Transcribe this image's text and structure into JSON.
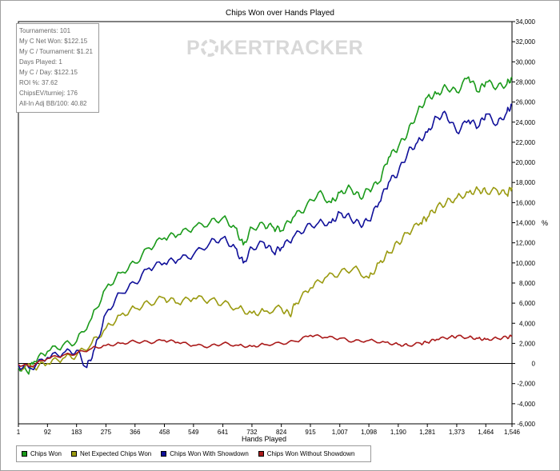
{
  "chart_data": {
    "type": "line",
    "title": "Chips Won over Hands Played",
    "xlabel": "Hands Played",
    "ylabel": "%",
    "xlim": [
      1,
      1546
    ],
    "ylim": [
      -6000,
      34000
    ],
    "x_ticks": [
      1,
      92,
      183,
      275,
      366,
      458,
      549,
      641,
      732,
      824,
      915,
      1007,
      1098,
      1190,
      1281,
      1373,
      1464,
      1546
    ],
    "x_tick_labels": [
      "1",
      "92",
      "183",
      "275",
      "366",
      "458",
      "549",
      "641",
      "732",
      "824",
      "915",
      "1,007",
      "1,098",
      "1,190",
      "1,281",
      "1,373",
      "1,464",
      "1,546"
    ],
    "y_ticks": [
      -6000,
      -4000,
      -2000,
      0,
      2000,
      4000,
      6000,
      8000,
      10000,
      12000,
      14000,
      16000,
      18000,
      20000,
      22000,
      24000,
      26000,
      28000,
      30000,
      32000,
      34000
    ],
    "y_tick_labels": [
      "-6,000",
      "-4,000",
      "-2,000",
      "0",
      "2,000",
      "4,000",
      "6,000",
      "8,000",
      "10,000",
      "12,000",
      "14,000",
      "16,000",
      "18,000",
      "20,000",
      "22,000",
      "24,000",
      "26,000",
      "28,000",
      "30,000",
      "32,000",
      "34,000"
    ],
    "grid": false,
    "legend_position": "bottom-left",
    "series": [
      {
        "name": "Chips Won",
        "color": "#1a9a1a",
        "points": [
          [
            1,
            -300
          ],
          [
            30,
            -900
          ],
          [
            50,
            200
          ],
          [
            92,
            1200
          ],
          [
            140,
            1800
          ],
          [
            183,
            2200
          ],
          [
            230,
            4500
          ],
          [
            275,
            7500
          ],
          [
            320,
            9000
          ],
          [
            366,
            10000
          ],
          [
            410,
            11500
          ],
          [
            458,
            12500
          ],
          [
            500,
            12800
          ],
          [
            549,
            13500
          ],
          [
            600,
            14000
          ],
          [
            641,
            14500
          ],
          [
            680,
            13500
          ],
          [
            705,
            11800
          ],
          [
            732,
            13500
          ],
          [
            770,
            13800
          ],
          [
            800,
            13500
          ],
          [
            824,
            13200
          ],
          [
            860,
            14500
          ],
          [
            900,
            15500
          ],
          [
            940,
            17000
          ],
          [
            980,
            16000
          ],
          [
            1007,
            17000
          ],
          [
            1040,
            17500
          ],
          [
            1070,
            16500
          ],
          [
            1098,
            17300
          ],
          [
            1130,
            18000
          ],
          [
            1160,
            20500
          ],
          [
            1190,
            21500
          ],
          [
            1220,
            23000
          ],
          [
            1250,
            25000
          ],
          [
            1281,
            26500
          ],
          [
            1310,
            26800
          ],
          [
            1340,
            27500
          ],
          [
            1373,
            27000
          ],
          [
            1410,
            28500
          ],
          [
            1440,
            27000
          ],
          [
            1464,
            28000
          ],
          [
            1500,
            27500
          ],
          [
            1530,
            27800
          ],
          [
            1546,
            28500
          ]
        ]
      },
      {
        "name": "Net Expected Chips Won",
        "color": "#9a9a10",
        "points": [
          [
            1,
            -300
          ],
          [
            50,
            -400
          ],
          [
            92,
            0
          ],
          [
            140,
            500
          ],
          [
            183,
            800
          ],
          [
            230,
            2000
          ],
          [
            275,
            3500
          ],
          [
            320,
            4800
          ],
          [
            366,
            5500
          ],
          [
            410,
            6000
          ],
          [
            458,
            6500
          ],
          [
            500,
            6000
          ],
          [
            549,
            6500
          ],
          [
            600,
            6300
          ],
          [
            641,
            6000
          ],
          [
            690,
            5500
          ],
          [
            732,
            5000
          ],
          [
            770,
            5200
          ],
          [
            824,
            5500
          ],
          [
            850,
            4800
          ],
          [
            870,
            6000
          ],
          [
            915,
            7500
          ],
          [
            960,
            8500
          ],
          [
            1007,
            9000
          ],
          [
            1050,
            9500
          ],
          [
            1098,
            8500
          ],
          [
            1130,
            10000
          ],
          [
            1160,
            11000
          ],
          [
            1190,
            12000
          ],
          [
            1220,
            13000
          ],
          [
            1260,
            14000
          ],
          [
            1281,
            14500
          ],
          [
            1310,
            15500
          ],
          [
            1340,
            16000
          ],
          [
            1373,
            16500
          ],
          [
            1410,
            17000
          ],
          [
            1440,
            17300
          ],
          [
            1464,
            17100
          ],
          [
            1500,
            17200
          ],
          [
            1530,
            16800
          ],
          [
            1546,
            17500
          ]
        ]
      },
      {
        "name": "Chips Won With Showdown",
        "color": "#10109a",
        "points": [
          [
            1,
            -200
          ],
          [
            40,
            -500
          ],
          [
            92,
            600
          ],
          [
            140,
            1000
          ],
          [
            183,
            1300
          ],
          [
            215,
            -400
          ],
          [
            240,
            1500
          ],
          [
            275,
            5000
          ],
          [
            320,
            7000
          ],
          [
            366,
            8000
          ],
          [
            410,
            9500
          ],
          [
            458,
            10000
          ],
          [
            500,
            10300
          ],
          [
            549,
            10800
          ],
          [
            600,
            12000
          ],
          [
            641,
            12500
          ],
          [
            680,
            11500
          ],
          [
            705,
            10000
          ],
          [
            732,
            11500
          ],
          [
            770,
            12000
          ],
          [
            800,
            11000
          ],
          [
            824,
            11500
          ],
          [
            860,
            12500
          ],
          [
            900,
            13500
          ],
          [
            940,
            14000
          ],
          [
            980,
            14000
          ],
          [
            1007,
            15000
          ],
          [
            1040,
            14500
          ],
          [
            1070,
            13800
          ],
          [
            1098,
            14200
          ],
          [
            1130,
            16000
          ],
          [
            1160,
            18000
          ],
          [
            1190,
            19000
          ],
          [
            1220,
            21000
          ],
          [
            1250,
            22000
          ],
          [
            1281,
            23000
          ],
          [
            1310,
            24500
          ],
          [
            1340,
            24800
          ],
          [
            1373,
            23000
          ],
          [
            1410,
            24200
          ],
          [
            1440,
            23500
          ],
          [
            1464,
            24800
          ],
          [
            1500,
            23800
          ],
          [
            1530,
            25000
          ],
          [
            1546,
            25800
          ]
        ]
      },
      {
        "name": "Chips Won Without Showdown",
        "color": "#aa1a1a",
        "points": [
          [
            1,
            -100
          ],
          [
            40,
            -300
          ],
          [
            92,
            500
          ],
          [
            140,
            800
          ],
          [
            183,
            1000
          ],
          [
            230,
            1500
          ],
          [
            275,
            1800
          ],
          [
            320,
            2000
          ],
          [
            366,
            2200
          ],
          [
            410,
            2100
          ],
          [
            458,
            2300
          ],
          [
            500,
            2100
          ],
          [
            549,
            1800
          ],
          [
            600,
            1700
          ],
          [
            641,
            2000
          ],
          [
            690,
            1800
          ],
          [
            732,
            1700
          ],
          [
            770,
            1900
          ],
          [
            824,
            2000
          ],
          [
            870,
            2200
          ],
          [
            915,
            2800
          ],
          [
            960,
            2600
          ],
          [
            1007,
            2500
          ],
          [
            1050,
            2200
          ],
          [
            1098,
            2300
          ],
          [
            1150,
            2100
          ],
          [
            1190,
            1900
          ],
          [
            1220,
            1800
          ],
          [
            1260,
            2000
          ],
          [
            1281,
            2100
          ],
          [
            1310,
            2400
          ],
          [
            1350,
            2600
          ],
          [
            1373,
            2700
          ],
          [
            1410,
            2600
          ],
          [
            1440,
            2500
          ],
          [
            1464,
            2400
          ],
          [
            1500,
            2500
          ],
          [
            1530,
            2600
          ],
          [
            1546,
            2700
          ]
        ]
      }
    ]
  },
  "stats": {
    "lines": [
      "Tournaments: 101",
      "My C Net Won: $122.15",
      "My C / Tournament: $1.21",
      "Days Played: 1",
      "My C / Day: $122.15",
      "ROI %: 37.62",
      "ChipsEV/turniej: 176",
      "All-In Adj BB/100: 40.82"
    ]
  },
  "watermark": {
    "brand_left": "P",
    "brand_right": "KER",
    "brand_tracker": "TRACKER"
  }
}
